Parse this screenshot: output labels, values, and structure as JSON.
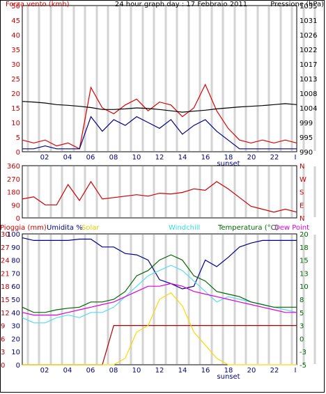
{
  "chart_data": [
    {
      "type": "line",
      "title": "24 hour graph day : 17 Febbraio 2011",
      "left_axis_label": "Forza vento (kmh)",
      "right_axis_label": "Pressione (hPa)",
      "x_tick_labels": [
        "02",
        "04",
        "06",
        "08",
        "10",
        "12",
        "14",
        "16",
        "18",
        "20",
        "22",
        "I"
      ],
      "x_marker": "sunset",
      "y_ticks_left": [
        "0",
        "5",
        "10",
        "15",
        "20",
        "25",
        "30",
        "35",
        "40",
        "45",
        "50"
      ],
      "y_ticks_right": [
        "990",
        "995",
        "999",
        "1004",
        "1008",
        "1013",
        "1017",
        "1022",
        "1026",
        "1031",
        "1035"
      ],
      "ylim_left": [
        0,
        50
      ],
      "ylim_right": [
        990,
        1035
      ],
      "x": [
        0,
        1,
        2,
        3,
        4,
        5,
        6,
        7,
        8,
        9,
        10,
        11,
        12,
        13,
        14,
        15,
        16,
        17,
        18,
        19,
        20,
        21,
        22,
        23,
        24
      ],
      "series": [
        {
          "name": "Forza vento (kmh)",
          "axis": "left",
          "color": "#dd0000",
          "values": [
            4,
            3,
            4,
            2,
            3,
            1,
            22,
            15,
            13,
            16,
            18,
            14,
            17,
            16,
            12,
            15,
            23,
            14,
            8,
            4,
            3,
            4,
            3,
            4,
            3
          ]
        },
        {
          "name": "",
          "axis": "left",
          "color": "#000080",
          "values": [
            1,
            1,
            2,
            1,
            1,
            1,
            12,
            7,
            11,
            9,
            12,
            10,
            8,
            11,
            6,
            9,
            11,
            7,
            4,
            1,
            1,
            1,
            1,
            1,
            1
          ]
        },
        {
          "name": "Pressione (hPa)",
          "axis": "right",
          "color": "#000000",
          "values": [
            1005.5,
            1005.3,
            1005,
            1004.5,
            1004.3,
            1004,
            1003.6,
            1003,
            1003,
            1003.2,
            1003.5,
            1003.3,
            1003,
            1002.6,
            1002.2,
            1002.5,
            1002.8,
            1003.2,
            1003.5,
            1003.8,
            1004,
            1004.2,
            1004.5,
            1004.8,
            1004.5
          ]
        }
      ]
    },
    {
      "type": "line",
      "y_ticks_left": [
        "0",
        "90",
        "180",
        "270",
        "360"
      ],
      "y_ticks_right": [
        "N",
        "E",
        "S",
        "W",
        "N"
      ],
      "ylim": [
        0,
        360
      ],
      "x": [
        0,
        1,
        2,
        3,
        4,
        5,
        6,
        7,
        8,
        9,
        10,
        11,
        12,
        13,
        14,
        15,
        16,
        17,
        18,
        19,
        20,
        21,
        22,
        23,
        24
      ],
      "series": [
        {
          "name": "",
          "color": "#cc0000",
          "values": [
            130,
            145,
            90,
            90,
            230,
            120,
            250,
            130,
            140,
            150,
            160,
            150,
            170,
            165,
            175,
            200,
            190,
            250,
            200,
            140,
            80,
            60,
            40,
            60,
            40
          ]
        }
      ]
    },
    {
      "type": "line",
      "legend": [
        "Pioggia (mm)",
        "Umidita %",
        "Solar",
        "Windchill",
        "Temperatura (°C)",
        "Dew Point"
      ],
      "x_tick_labels": [
        "02",
        "04",
        "06",
        "08",
        "10",
        "12",
        "14",
        "16",
        "18",
        "20",
        "22",
        "I"
      ],
      "x_marker": "sunset",
      "y_ticks_pioggia": [
        "0",
        "3",
        "6",
        "9",
        "12",
        "15",
        "18",
        "21",
        "24",
        "27",
        "30"
      ],
      "y_ticks_umidita": [
        "0",
        "10",
        "20",
        "30",
        "40",
        "50",
        "60",
        "70",
        "80",
        "90",
        "100"
      ],
      "y_ticks_temperatura": [
        "-5",
        "-3",
        "0",
        "3",
        "5",
        "8",
        "10",
        "13",
        "15",
        "18",
        "20"
      ],
      "ylim_pioggia": [
        0,
        30
      ],
      "ylim_umidita": [
        0,
        100
      ],
      "ylim_temperatura": [
        -5,
        20
      ],
      "x": [
        0,
        1,
        2,
        3,
        4,
        5,
        6,
        7,
        8,
        9,
        10,
        11,
        12,
        13,
        14,
        15,
        16,
        17,
        18,
        19,
        20,
        21,
        22,
        23,
        24
      ],
      "series": [
        {
          "name": "Pioggia (mm)",
          "axis": "pioggia",
          "color": "#aa0000",
          "values": [
            0,
            0,
            0,
            0,
            0,
            0,
            0,
            0,
            9,
            9,
            9,
            9,
            9,
            9,
            9,
            9,
            9,
            9,
            9,
            9,
            9,
            9,
            9,
            9,
            9
          ]
        },
        {
          "name": "Umidita %",
          "axis": "umidita",
          "color": "#000090",
          "values": [
            97,
            95,
            95,
            95,
            95,
            96,
            96,
            90,
            90,
            85,
            84,
            80,
            65,
            62,
            58,
            60,
            80,
            75,
            82,
            90,
            93,
            95,
            95,
            95,
            95
          ]
        },
        {
          "name": "Solar",
          "axis": "umidita",
          "color": "#ffd700",
          "values": [
            0,
            0,
            0,
            0,
            0,
            0,
            0,
            0,
            0,
            5,
            25,
            30,
            50,
            55,
            45,
            25,
            15,
            5,
            0,
            0,
            0,
            0,
            0,
            0,
            0
          ]
        },
        {
          "name": "Windchill",
          "axis": "temperatura",
          "color": "#55ddee",
          "values": [
            4,
            3,
            3,
            4,
            4.5,
            4,
            5,
            5,
            6,
            8,
            10,
            12,
            13,
            14,
            13,
            11,
            9,
            7,
            8,
            7.5,
            7,
            6.5,
            6,
            5.5,
            5
          ]
        },
        {
          "name": "Temperatura (°C)",
          "axis": "temperatura",
          "color": "#006600",
          "values": [
            6,
            5,
            5,
            5.5,
            5.8,
            6,
            7,
            7,
            7.5,
            9,
            12,
            13,
            15,
            16,
            15,
            12,
            11,
            9,
            8.5,
            8,
            7,
            6.5,
            6,
            6,
            6
          ]
        },
        {
          "name": "Dew Point",
          "axis": "temperatura",
          "color": "#dd00dd",
          "values": [
            5,
            4.5,
            4.5,
            4.5,
            5,
            5.5,
            6,
            6.5,
            7,
            8,
            9,
            10,
            10,
            10.5,
            10,
            9,
            8.5,
            8,
            7.5,
            7,
            6.5,
            6,
            5.5,
            5,
            5
          ]
        }
      ]
    }
  ],
  "colors": {
    "axis_red": "#cc0000",
    "axis_blue": "#000080",
    "axis_green": "#006600",
    "solar_yellow": "#ddcc00",
    "windchill_cyan": "#33dddd",
    "dewpoint_magenta": "#dd00dd"
  }
}
